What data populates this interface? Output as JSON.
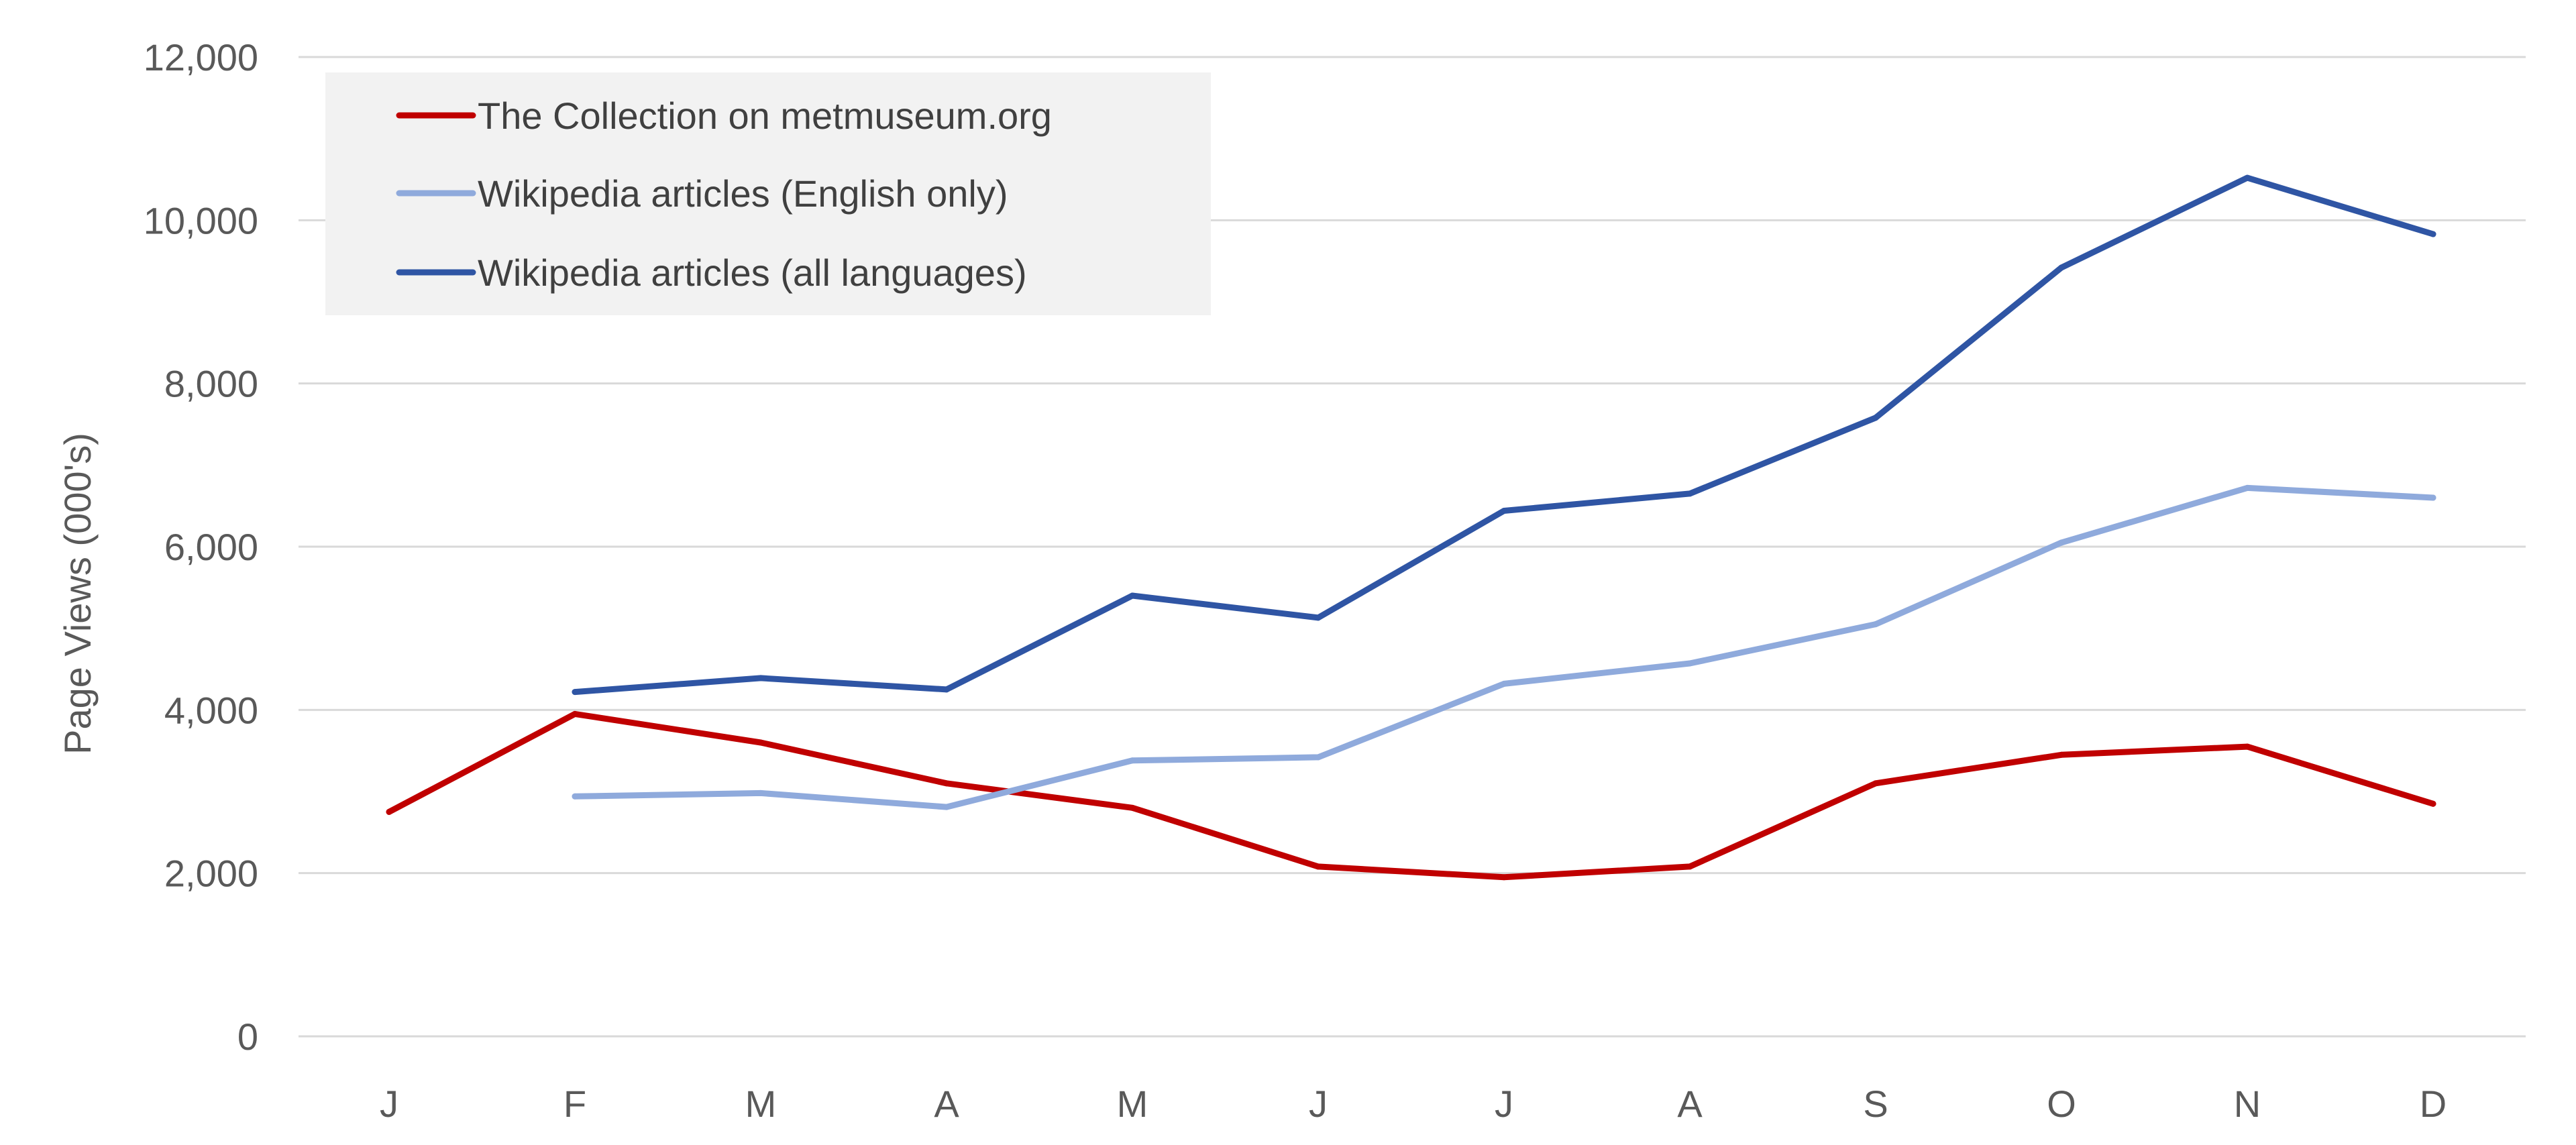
{
  "chart_data": {
    "type": "line",
    "title": "",
    "xlabel": "",
    "ylabel": "Page Views (000's)",
    "categories": [
      "J",
      "F",
      "M",
      "A",
      "M",
      "J",
      "J",
      "A",
      "S",
      "O",
      "N",
      "D"
    ],
    "ylim": [
      0,
      12000
    ],
    "yticks": [
      0,
      2000,
      4000,
      6000,
      8000,
      10000,
      12000
    ],
    "ytick_labels": [
      "0",
      "2,000",
      "4,000",
      "6,000",
      "8,000",
      "10,000",
      "12,000"
    ],
    "grid": true,
    "legend_position": "top-left",
    "series": [
      {
        "name": "The Collection on metmuseum.org",
        "color": "#c00000",
        "values": [
          2750,
          3950,
          3600,
          3100,
          2800,
          2080,
          1950,
          2080,
          3100,
          3450,
          3550,
          2850
        ]
      },
      {
        "name": "Wikipedia articles (English only)",
        "color": "#8faadc",
        "values": [
          null,
          2940,
          2980,
          2810,
          3380,
          3420,
          4320,
          4570,
          5050,
          6050,
          6720,
          6600
        ]
      },
      {
        "name": "Wikipedia articles (all languages)",
        "color": "#2f55a4",
        "values": [
          null,
          4220,
          4390,
          4250,
          5400,
          5130,
          6440,
          6650,
          7580,
          9420,
          10520,
          9830
        ]
      }
    ]
  }
}
